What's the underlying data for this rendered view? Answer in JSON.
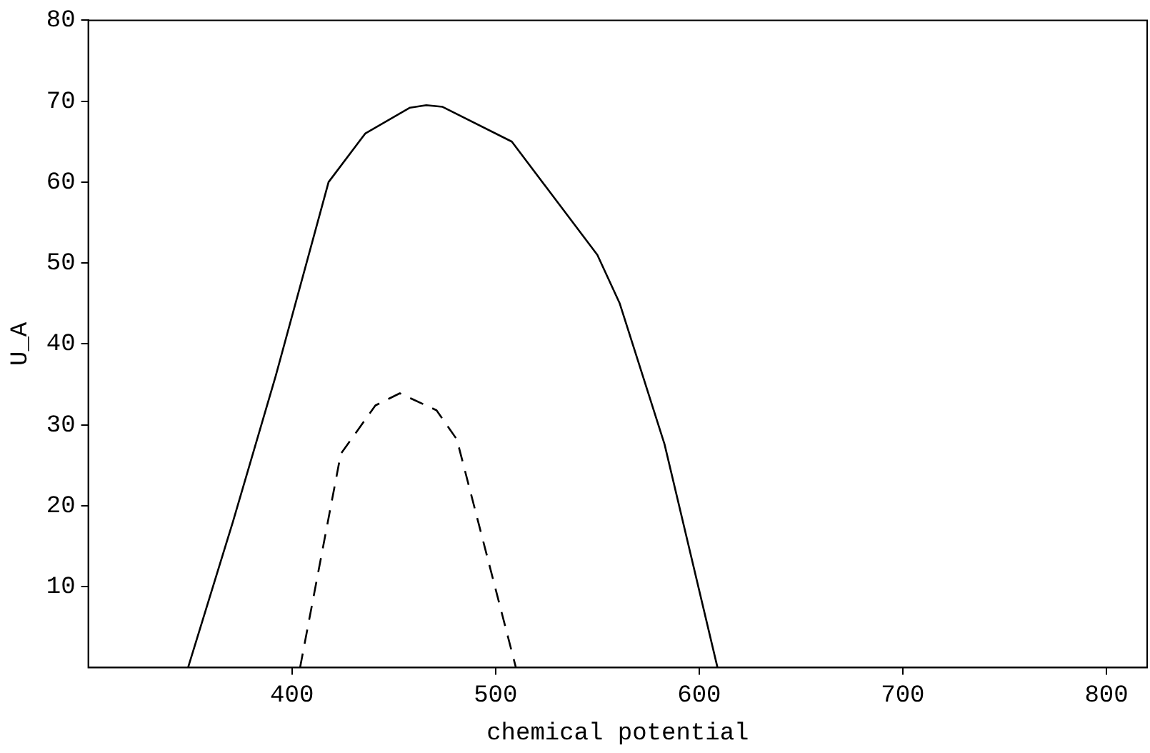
{
  "chart_data": {
    "type": "line",
    "xlabel": "chemical potential",
    "ylabel": "U_A",
    "xlim": [
      300,
      820
    ],
    "ylim": [
      0,
      80
    ],
    "xticks": [
      400,
      500,
      600,
      700,
      800
    ],
    "yticks": [
      10,
      20,
      30,
      40,
      50,
      60,
      70,
      80
    ],
    "grid": false,
    "legend": false,
    "marker": "none",
    "series": [
      {
        "color": "#000000",
        "line_style": "solid",
        "x": [
          349,
          371,
          392,
          418,
          436,
          458,
          466,
          474,
          508,
          550,
          561,
          583,
          609
        ],
        "values": [
          0,
          18,
          36,
          60,
          66,
          69.2,
          69.5,
          69.3,
          65,
          51,
          45,
          27.6,
          0
        ]
      },
      {
        "color": "#000000",
        "line_style": "dashed",
        "x": [
          404,
          424,
          441,
          453,
          471,
          481,
          510
        ],
        "values": [
          0,
          26.4,
          32.4,
          33.9,
          31.8,
          28.2,
          0
        ]
      }
    ]
  }
}
